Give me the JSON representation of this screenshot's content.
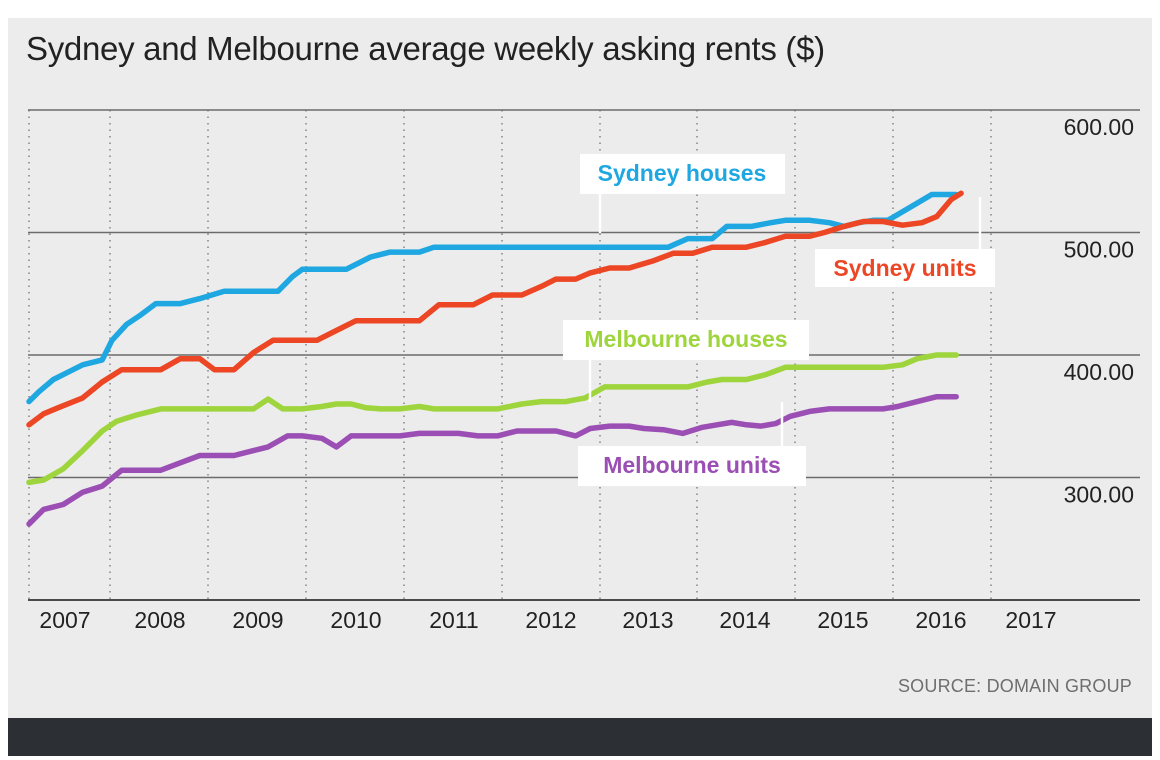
{
  "chart_data": {
    "type": "line",
    "title": "Sydney and Melbourne average weekly asking rents ($)",
    "source": "SOURCE: DOMAIN GROUP",
    "xlabel": "",
    "ylabel": "",
    "x_ticks": [
      "2007",
      "2008",
      "2009",
      "2010",
      "2011",
      "2012",
      "2013",
      "2014",
      "2015",
      "2016",
      "2017"
    ],
    "y_ticks": [
      "600.00",
      "500.00",
      "400.00",
      "300.00"
    ],
    "xlim": [
      2007.2,
      2017.4
    ],
    "ylim": [
      200,
      600
    ],
    "grid": "horizontal solid, vertical dotted",
    "colors": {
      "panel": "#ececec",
      "sydney_houses": "#1ea7e1",
      "sydney_units": "#ec4625",
      "melbourne_houses": "#9ed43c",
      "melbourne_units": "#9b4fb4"
    },
    "series": [
      {
        "name": "Sydney houses",
        "color": "#1ea7e1",
        "points": [
          [
            2007.2,
            362
          ],
          [
            2007.3,
            370
          ],
          [
            2007.45,
            380
          ],
          [
            2007.6,
            386
          ],
          [
            2007.75,
            392
          ],
          [
            2007.95,
            396
          ],
          [
            2008.05,
            412
          ],
          [
            2008.2,
            425
          ],
          [
            2008.35,
            433
          ],
          [
            2008.5,
            442
          ],
          [
            2008.75,
            442
          ],
          [
            2008.95,
            446
          ],
          [
            2009.2,
            452
          ],
          [
            2009.5,
            452
          ],
          [
            2009.75,
            452
          ],
          [
            2009.9,
            464
          ],
          [
            2010.0,
            470
          ],
          [
            2010.25,
            470
          ],
          [
            2010.45,
            470
          ],
          [
            2010.7,
            480
          ],
          [
            2010.9,
            484
          ],
          [
            2011.2,
            484
          ],
          [
            2011.35,
            488
          ],
          [
            2011.5,
            488
          ],
          [
            2011.75,
            488
          ],
          [
            2012.25,
            488
          ],
          [
            2012.5,
            488
          ],
          [
            2013.0,
            488
          ],
          [
            2013.5,
            488
          ],
          [
            2013.75,
            488
          ],
          [
            2013.95,
            495
          ],
          [
            2014.2,
            495
          ],
          [
            2014.35,
            505
          ],
          [
            2014.6,
            505
          ],
          [
            2014.8,
            508
          ],
          [
            2014.95,
            510
          ],
          [
            2015.2,
            510
          ],
          [
            2015.4,
            508
          ],
          [
            2015.55,
            505
          ],
          [
            2015.7,
            508
          ],
          [
            2015.85,
            510
          ],
          [
            2016.0,
            510
          ],
          [
            2016.15,
            517
          ],
          [
            2016.3,
            524
          ],
          [
            2016.45,
            531
          ],
          [
            2016.7,
            531
          ]
        ]
      },
      {
        "name": "Sydney units",
        "color": "#ec4625",
        "points": [
          [
            2007.2,
            343
          ],
          [
            2007.35,
            352
          ],
          [
            2007.5,
            357
          ],
          [
            2007.75,
            365
          ],
          [
            2007.95,
            378
          ],
          [
            2008.15,
            388
          ],
          [
            2008.4,
            388
          ],
          [
            2008.55,
            388
          ],
          [
            2008.75,
            397
          ],
          [
            2008.95,
            397
          ],
          [
            2009.1,
            388
          ],
          [
            2009.3,
            388
          ],
          [
            2009.5,
            402
          ],
          [
            2009.7,
            412
          ],
          [
            2009.95,
            412
          ],
          [
            2010.15,
            412
          ],
          [
            2010.35,
            420
          ],
          [
            2010.55,
            428
          ],
          [
            2010.75,
            428
          ],
          [
            2011.0,
            428
          ],
          [
            2011.2,
            428
          ],
          [
            2011.4,
            441
          ],
          [
            2011.6,
            441
          ],
          [
            2011.75,
            441
          ],
          [
            2011.95,
            449
          ],
          [
            2012.1,
            449
          ],
          [
            2012.25,
            449
          ],
          [
            2012.45,
            456
          ],
          [
            2012.6,
            462
          ],
          [
            2012.8,
            462
          ],
          [
            2012.95,
            467
          ],
          [
            2013.15,
            471
          ],
          [
            2013.35,
            471
          ],
          [
            2013.6,
            477
          ],
          [
            2013.8,
            483
          ],
          [
            2014.0,
            483
          ],
          [
            2014.2,
            488
          ],
          [
            2014.4,
            488
          ],
          [
            2014.55,
            488
          ],
          [
            2014.75,
            492
          ],
          [
            2014.95,
            497
          ],
          [
            2015.2,
            497
          ],
          [
            2015.35,
            500
          ],
          [
            2015.55,
            505
          ],
          [
            2015.75,
            509
          ],
          [
            2015.95,
            509
          ],
          [
            2016.15,
            506
          ],
          [
            2016.35,
            508
          ],
          [
            2016.5,
            513
          ],
          [
            2016.65,
            527
          ],
          [
            2016.75,
            532
          ]
        ]
      },
      {
        "name": "Melbourne houses",
        "color": "#9ed43c",
        "points": [
          [
            2007.2,
            296
          ],
          [
            2007.35,
            298
          ],
          [
            2007.55,
            307
          ],
          [
            2007.75,
            322
          ],
          [
            2007.95,
            338
          ],
          [
            2008.1,
            346
          ],
          [
            2008.3,
            351
          ],
          [
            2008.55,
            356
          ],
          [
            2008.75,
            356
          ],
          [
            2009.0,
            356
          ],
          [
            2009.25,
            356
          ],
          [
            2009.5,
            356
          ],
          [
            2009.65,
            364
          ],
          [
            2009.8,
            356
          ],
          [
            2010.0,
            356
          ],
          [
            2010.2,
            358
          ],
          [
            2010.35,
            360
          ],
          [
            2010.5,
            360
          ],
          [
            2010.65,
            357
          ],
          [
            2010.8,
            356
          ],
          [
            2011.0,
            356
          ],
          [
            2011.2,
            358
          ],
          [
            2011.35,
            356
          ],
          [
            2011.5,
            356
          ],
          [
            2011.75,
            356
          ],
          [
            2012.0,
            356
          ],
          [
            2012.25,
            360
          ],
          [
            2012.45,
            362
          ],
          [
            2012.7,
            362
          ],
          [
            2012.9,
            365
          ],
          [
            2013.1,
            374
          ],
          [
            2013.3,
            374
          ],
          [
            2013.5,
            374
          ],
          [
            2013.75,
            374
          ],
          [
            2013.95,
            374
          ],
          [
            2014.15,
            378
          ],
          [
            2014.3,
            380
          ],
          [
            2014.55,
            380
          ],
          [
            2014.75,
            384
          ],
          [
            2014.95,
            390
          ],
          [
            2015.15,
            390
          ],
          [
            2015.35,
            390
          ],
          [
            2015.55,
            390
          ],
          [
            2015.75,
            390
          ],
          [
            2015.95,
            390
          ],
          [
            2016.15,
            392
          ],
          [
            2016.3,
            397
          ],
          [
            2016.5,
            400
          ],
          [
            2016.7,
            400
          ]
        ]
      },
      {
        "name": "Melbourne units",
        "color": "#9b4fb4",
        "points": [
          [
            2007.2,
            262
          ],
          [
            2007.35,
            274
          ],
          [
            2007.55,
            278
          ],
          [
            2007.75,
            288
          ],
          [
            2007.95,
            293
          ],
          [
            2008.15,
            306
          ],
          [
            2008.35,
            306
          ],
          [
            2008.55,
            306
          ],
          [
            2008.75,
            312
          ],
          [
            2008.95,
            318
          ],
          [
            2009.1,
            318
          ],
          [
            2009.3,
            318
          ],
          [
            2009.5,
            322
          ],
          [
            2009.65,
            325
          ],
          [
            2009.85,
            334
          ],
          [
            2010.0,
            334
          ],
          [
            2010.2,
            332
          ],
          [
            2010.35,
            325
          ],
          [
            2010.5,
            334
          ],
          [
            2010.65,
            334
          ],
          [
            2010.85,
            334
          ],
          [
            2011.0,
            334
          ],
          [
            2011.2,
            336
          ],
          [
            2011.4,
            336
          ],
          [
            2011.6,
            336
          ],
          [
            2011.8,
            334
          ],
          [
            2012.0,
            334
          ],
          [
            2012.2,
            338
          ],
          [
            2012.4,
            338
          ],
          [
            2012.6,
            338
          ],
          [
            2012.8,
            334
          ],
          [
            2012.95,
            340
          ],
          [
            2013.15,
            342
          ],
          [
            2013.35,
            342
          ],
          [
            2013.5,
            340
          ],
          [
            2013.7,
            339
          ],
          [
            2013.9,
            336
          ],
          [
            2014.1,
            341
          ],
          [
            2014.25,
            343
          ],
          [
            2014.4,
            345
          ],
          [
            2014.55,
            343
          ],
          [
            2014.7,
            342
          ],
          [
            2014.85,
            344
          ],
          [
            2015.0,
            350
          ],
          [
            2015.2,
            354
          ],
          [
            2015.4,
            356
          ],
          [
            2015.55,
            356
          ],
          [
            2015.75,
            356
          ],
          [
            2015.95,
            356
          ],
          [
            2016.1,
            358
          ],
          [
            2016.3,
            362
          ],
          [
            2016.5,
            366
          ],
          [
            2016.7,
            366
          ]
        ]
      }
    ],
    "annotations": [
      {
        "text": "Sydney houses",
        "series": 0
      },
      {
        "text": "Sydney units",
        "series": 1
      },
      {
        "text": "Melbourne houses",
        "series": 2
      },
      {
        "text": "Melbourne units",
        "series": 3
      }
    ]
  }
}
